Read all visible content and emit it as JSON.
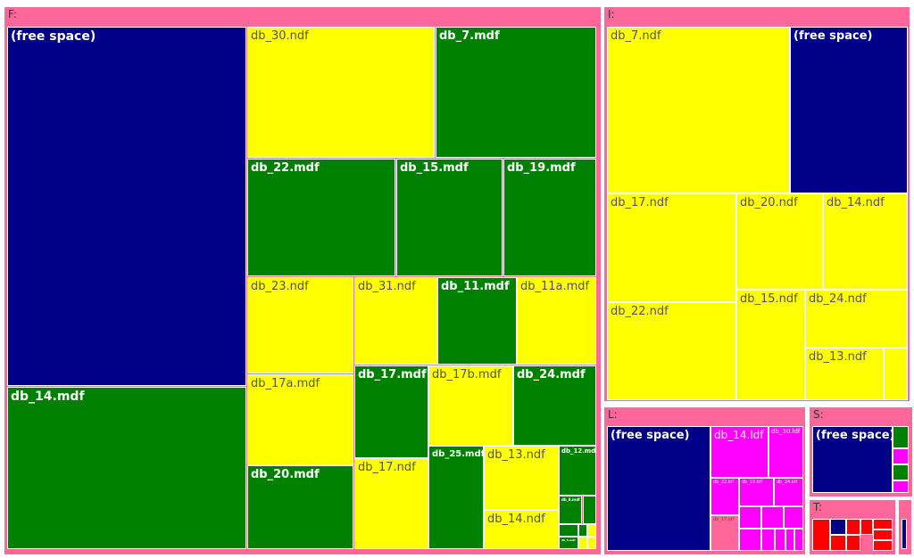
{
  "chart_data": {
    "type": "treemap",
    "colors": {
      "frame": "#FF6699",
      "free": "#000088",
      "mdf": "#008000",
      "ndf": "#FFFF00",
      "ldf": "#FF00FF",
      "other": "#FF0000"
    },
    "drives": [
      {
        "label": "F:",
        "items": [
          {
            "label": "(free space)",
            "kind": "free"
          },
          {
            "label": "db_14.mdf",
            "kind": "mdf"
          },
          {
            "label": "db_30.ndf",
            "kind": "ndf"
          },
          {
            "label": "db_7.mdf",
            "kind": "mdf"
          },
          {
            "label": "db_22.mdf",
            "kind": "mdf"
          },
          {
            "label": "db_15.mdf",
            "kind": "mdf"
          },
          {
            "label": "db_19.mdf",
            "kind": "mdf"
          },
          {
            "label": "db_23.ndf",
            "kind": "ndf"
          },
          {
            "label": "db_31.ndf",
            "kind": "ndf"
          },
          {
            "label": "db_11.mdf",
            "kind": "mdf"
          },
          {
            "label": "db_11a.mdf",
            "kind": "ndf"
          },
          {
            "label": "db_17a.mdf",
            "kind": "ndf"
          },
          {
            "label": "db_17.mdf",
            "kind": "mdf"
          },
          {
            "label": "db_17b.mdf",
            "kind": "ndf"
          },
          {
            "label": "db_24.mdf",
            "kind": "mdf"
          },
          {
            "label": "db_20.mdf",
            "kind": "mdf"
          },
          {
            "label": "db_17.ndf",
            "kind": "ndf"
          },
          {
            "label": "db_25.mdf",
            "kind": "mdf"
          },
          {
            "label": "db_13.ndf",
            "kind": "ndf"
          },
          {
            "label": "db_12.mdf",
            "kind": "mdf"
          },
          {
            "label": "db_14.ndf",
            "kind": "ndf"
          },
          {
            "label": "db_8.mdf",
            "kind": "mdf"
          },
          {
            "label": "",
            "kind": "mdf"
          },
          {
            "label": "",
            "kind": "mdf"
          },
          {
            "label": "",
            "kind": "mdf"
          },
          {
            "label": "",
            "kind": "ndf"
          },
          {
            "label": "db_5.mdf",
            "kind": "mdf"
          },
          {
            "label": "",
            "kind": "ndf"
          },
          {
            "label": "",
            "kind": "ndf"
          }
        ]
      },
      {
        "label": "I:",
        "items": [
          {
            "label": "db_7.ndf",
            "kind": "ndf"
          },
          {
            "label": "(free space)",
            "kind": "free"
          },
          {
            "label": "db_17.ndf",
            "kind": "ndf"
          },
          {
            "label": "db_20.ndf",
            "kind": "ndf"
          },
          {
            "label": "db_14.ndf",
            "kind": "ndf"
          },
          {
            "label": "db_22.ndf",
            "kind": "ndf"
          },
          {
            "label": "db_15.ndf",
            "kind": "ndf"
          },
          {
            "label": "db_24.ndf",
            "kind": "ndf"
          },
          {
            "label": "db_13.ndf",
            "kind": "ndf"
          },
          {
            "label": "",
            "kind": "ndf"
          }
        ]
      },
      {
        "label": "L:",
        "items": [
          {
            "label": "(free space)",
            "kind": "free"
          },
          {
            "label": "db_14.ldf",
            "kind": "ldf"
          },
          {
            "label": "db_30.ldf",
            "kind": "ldf"
          },
          {
            "label": "db_22.ldf",
            "kind": "ldf"
          },
          {
            "label": "db_19.ldf",
            "kind": "ldf"
          },
          {
            "label": "db_24.ldf",
            "kind": "ldf"
          },
          {
            "label": "db_17.ldf",
            "kind": "frame"
          },
          {
            "label": "",
            "kind": "ldf"
          },
          {
            "label": "",
            "kind": "ldf"
          },
          {
            "label": "",
            "kind": "ldf"
          },
          {
            "label": "",
            "kind": "ldf"
          },
          {
            "label": "",
            "kind": "ldf"
          },
          {
            "label": "",
            "kind": "ldf"
          },
          {
            "label": "",
            "kind": "ldf"
          },
          {
            "label": "",
            "kind": "ldf"
          }
        ]
      },
      {
        "label": "S:",
        "items": [
          {
            "label": "(free space)",
            "kind": "free"
          },
          {
            "label": "",
            "kind": "mdf"
          },
          {
            "label": "",
            "kind": "ldf"
          },
          {
            "label": "",
            "kind": "mdf"
          },
          {
            "label": "",
            "kind": "ldf"
          }
        ]
      },
      {
        "label": "T:",
        "items": [
          {
            "label": "",
            "kind": "other"
          },
          {
            "label": "",
            "kind": "free"
          },
          {
            "label": "",
            "kind": "other"
          },
          {
            "label": "",
            "kind": "other"
          },
          {
            "label": "",
            "kind": "other"
          },
          {
            "label": "",
            "kind": "other"
          },
          {
            "label": "",
            "kind": "other"
          },
          {
            "label": "",
            "kind": "other"
          },
          {
            "label": "",
            "kind": "other"
          }
        ]
      },
      {
        "label": "",
        "items": [
          {
            "label": "",
            "kind": "free"
          }
        ]
      }
    ]
  }
}
